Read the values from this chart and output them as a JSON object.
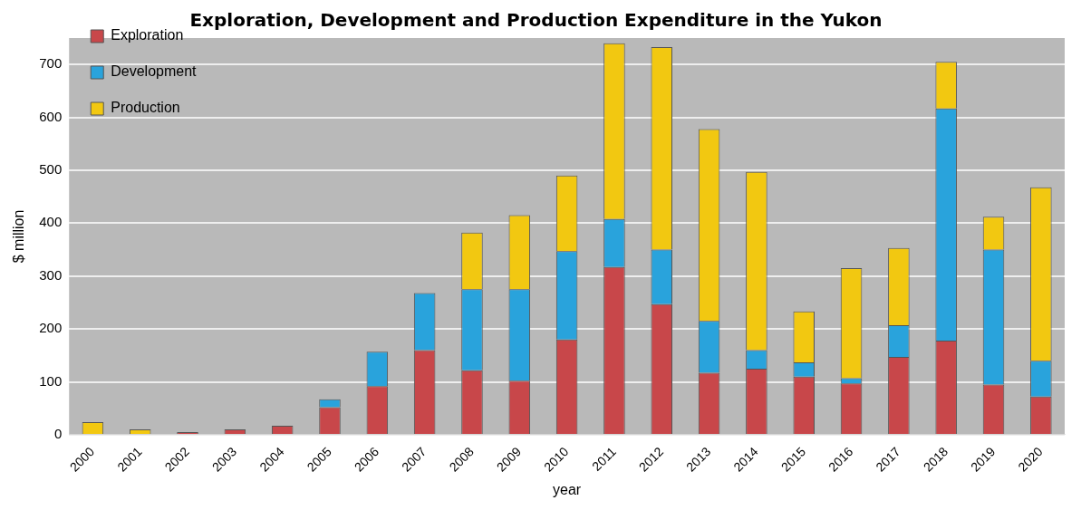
{
  "chart_data": {
    "type": "bar",
    "title": "Exploration, Development and Production Expenditure in the Yukon",
    "xlabel": "year",
    "ylabel": "$ million",
    "categories": [
      "2000",
      "2001",
      "2002",
      "2003",
      "2004",
      "2005",
      "2006",
      "2007",
      "2008",
      "2009",
      "2010",
      "2011",
      "2012",
      "2013",
      "2014",
      "2015",
      "2016",
      "2017",
      "2018",
      "2019",
      "2020"
    ],
    "series": [
      {
        "name": "Exploration",
        "color": "#c8474a",
        "values": [
          null,
          null,
          5,
          10,
          17,
          52,
          92,
          160,
          122,
          102,
          180,
          317,
          247,
          117,
          125,
          110,
          97,
          147,
          178,
          95,
          72
        ]
      },
      {
        "name": "Development",
        "color": "#29a3dc",
        "values": [
          0,
          0,
          0,
          0,
          0,
          15,
          65,
          108,
          153,
          173,
          167,
          91,
          103,
          98,
          35,
          27,
          10,
          60,
          439,
          255,
          68
        ]
      },
      {
        "name": "Production",
        "color": "#f2c811",
        "values": [
          24,
          10,
          0,
          0,
          0,
          0,
          0,
          0,
          107,
          140,
          143,
          332,
          383,
          363,
          337,
          96,
          208,
          146,
          88,
          62,
          328
        ]
      }
    ],
    "stacked": true,
    "ylim": [
      0,
      750
    ],
    "yticks": [
      0,
      100,
      200,
      300,
      400,
      500,
      600,
      700
    ],
    "grid": "y",
    "legend": "top left"
  }
}
